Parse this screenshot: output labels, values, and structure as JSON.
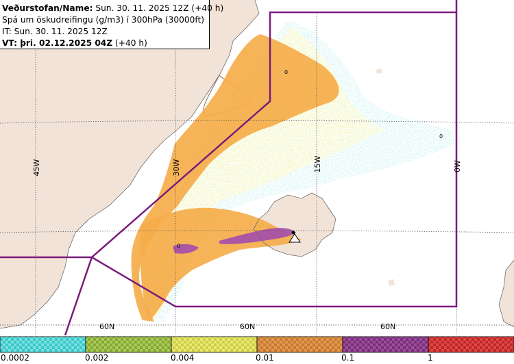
{
  "info_box": {
    "line1_label": "Veðurstofan/Name:",
    "line1_value": " Sun. 30. 11. 2025 12Z (+40 h)",
    "line2": "Spá um öskudreifingu (g/m3) í 300hPa (30000ft)",
    "line3": "IT: Sun. 30. 11. 2025 12Z",
    "line4_label": "VT: þri. 02.12.2025 04Z",
    "line4_value": " (+40 h)"
  },
  "map": {
    "longitude_labels": [
      "45W",
      "30W",
      "15W",
      "0W"
    ],
    "latitude_labels": [
      "60N",
      "60N",
      "60N"
    ],
    "zero_markers": [
      "0",
      "0",
      "0"
    ],
    "colors": {
      "land": "#f2e3d8",
      "sea": "#ffffff",
      "coast": "#6b6b6b",
      "grid": "#555555",
      "boundary": "#7b1b7b",
      "ash_low": "#5ad8d8",
      "ash_mid_low": "#eeee60",
      "ash_mid": "#f5ad4a",
      "ash_high": "#a34dac"
    }
  },
  "legend": {
    "swatches": [
      {
        "color": "#38c8c8",
        "alt": "#7ae0e0"
      },
      {
        "color": "#86a83a",
        "alt": "#aacb55"
      },
      {
        "color": "#cfcf40",
        "alt": "#e8e87a"
      },
      {
        "color": "#c87a30",
        "alt": "#e09a50"
      },
      {
        "color": "#7a2f7a",
        "alt": "#9a4f9a"
      },
      {
        "color": "#c02828",
        "alt": "#e04848"
      }
    ],
    "tick_labels": [
      "0.0002",
      "0.002",
      "0.004",
      "0.01",
      "0.1",
      "1"
    ]
  }
}
